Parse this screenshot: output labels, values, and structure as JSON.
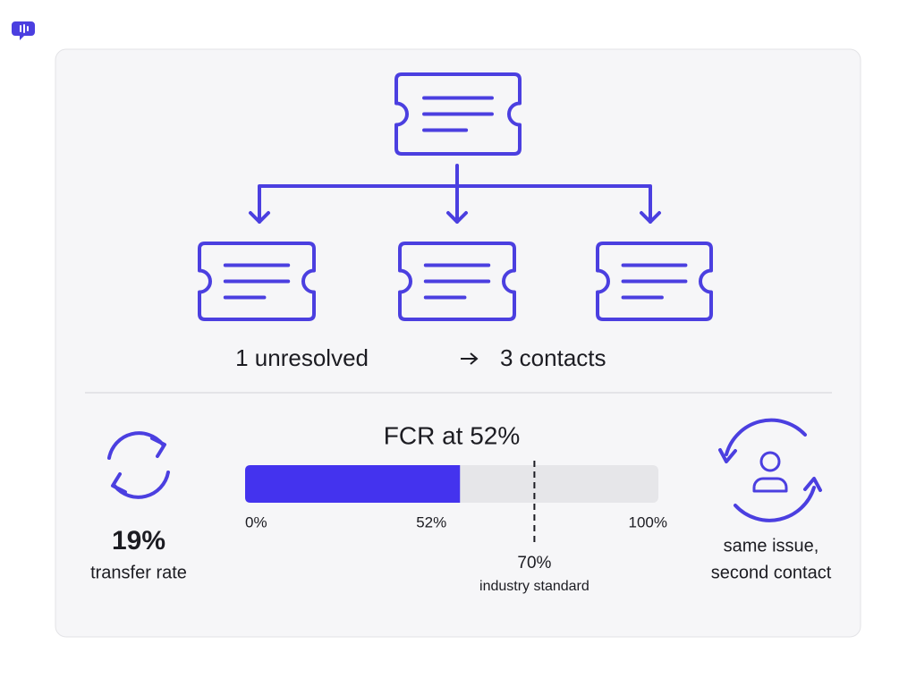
{
  "flow": {
    "caption_left": "1 unresolved",
    "caption_right": "3 contacts"
  },
  "transfer": {
    "value": "19%",
    "label": "transfer rate"
  },
  "fcr": {
    "title": "FCR at 52%",
    "value": {
      "value": 52,
      "label": "52%"
    },
    "min": {
      "value": 0,
      "label": "0%"
    },
    "max": {
      "value": 100,
      "label": "100%"
    },
    "benchmark": {
      "value": 70,
      "label": "70%"
    },
    "benchmark_label": "industry standard"
  },
  "repeat": {
    "line1": "same issue,",
    "line2": "second contact"
  }
}
